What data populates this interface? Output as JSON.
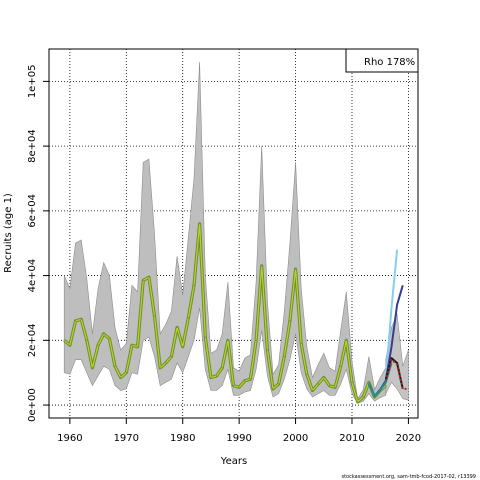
{
  "chart_data": {
    "type": "line",
    "xlabel": "Years",
    "ylabel": "Recruits (age 1)",
    "xlim": [
      1956.3,
      2021.7
    ],
    "ylim": [
      -4000,
      110000
    ],
    "x_ticks": [
      1960,
      1970,
      1980,
      1990,
      2000,
      2010,
      2020
    ],
    "y_ticks": [
      0,
      20000,
      40000,
      60000,
      80000,
      100000
    ],
    "y_tick_labels": [
      "0e+00",
      "2e+04",
      "4e+04",
      "6e+04",
      "8e+04",
      "1e+05"
    ],
    "grid": true,
    "legend": {
      "position": "top-right",
      "text": "Rho 178%"
    },
    "footer": "stockassessment.org, sam-tmb-fcod-2017-02, r13399",
    "colors": {
      "band": "#bebebe",
      "band_edge": "#8c8c8c",
      "main": "#6f8f2a",
      "highlight": "#b7d42a",
      "peel_1": "#87ceeb",
      "peel_2": "#3a3a9a",
      "peel_3": "#2e2e6e",
      "peel_4": "#2a8a8a",
      "peel_5": "#1a1a1a",
      "peel_6": "#a52a2a"
    },
    "x": [
      1959,
      1960,
      1961,
      1962,
      1963,
      1964,
      1965,
      1966,
      1967,
      1968,
      1969,
      1970,
      1971,
      1972,
      1973,
      1974,
      1975,
      1976,
      1977,
      1978,
      1979,
      1980,
      1981,
      1982,
      1983,
      1984,
      1985,
      1986,
      1987,
      1988,
      1989,
      1990,
      1991,
      1992,
      1993,
      1994,
      1995,
      1996,
      1997,
      1998,
      1999,
      2000,
      2001,
      2002,
      2003,
      2004,
      2005,
      2006,
      2007,
      2008,
      2009,
      2010,
      2011,
      2012,
      2013,
      2014,
      2015,
      2016
    ],
    "series": [
      {
        "values": [
          20000,
          18500,
          26000,
          26500,
          20000,
          11500,
          18500,
          22000,
          20500,
          12000,
          8500,
          10000,
          18500,
          18000,
          38500,
          39500,
          27500,
          11500,
          13000,
          15000,
          24000,
          18000,
          27000,
          37000,
          56000,
          21000,
          8500,
          9000,
          11500,
          20000,
          6000,
          5500,
          7500,
          8000,
          20000,
          43000,
          17000,
          5000,
          6500,
          15000,
          26000,
          42000,
          19000,
          9500,
          4500,
          6500,
          8500,
          6000,
          5500,
          12000,
          20000,
          7000,
          1000,
          2500,
          7000,
          2500,
          4500,
          6000
        ],
        "lower": [
          10000,
          9500,
          14000,
          14000,
          10000,
          6000,
          9000,
          12000,
          11000,
          6000,
          4500,
          5000,
          10000,
          9500,
          20000,
          21000,
          15000,
          6000,
          7000,
          8000,
          13000,
          10000,
          15000,
          20000,
          30000,
          11000,
          4500,
          4500,
          6000,
          11000,
          3000,
          3000,
          4000,
          4500,
          11000,
          23000,
          9000,
          2500,
          3500,
          8000,
          14000,
          22000,
          10000,
          5000,
          2500,
          3500,
          4500,
          3000,
          3000,
          6500,
          11000,
          3500,
          500,
          1200,
          3500,
          1200,
          2300,
          3000
        ],
        "upper": [
          40000,
          36000,
          50000,
          51000,
          39000,
          22000,
          36000,
          44000,
          40000,
          24000,
          17000,
          19000,
          37000,
          35000,
          75000,
          76000,
          53000,
          22000,
          25000,
          29000,
          46000,
          34000,
          52000,
          70000,
          106000,
          40000,
          16000,
          17000,
          22000,
          38000,
          11500,
          10500,
          14500,
          15500,
          38000,
          80000,
          32000,
          9500,
          12500,
          29000,
          50000,
          75000,
          36000,
          18000,
          8500,
          12500,
          16000,
          11500,
          10500,
          23000,
          35000,
          13500,
          1900,
          4800,
          15000,
          4800,
          8500,
          11500
        ]
      }
    ],
    "peels": [
      {
        "color_key": "peel_1",
        "x": [
          2013,
          2014,
          2015,
          2016,
          2017,
          2018
        ],
        "values": [
          6500,
          3000,
          5000,
          8000,
          30000,
          48000
        ]
      },
      {
        "color_key": "peel_2",
        "x": [
          2013,
          2014,
          2015,
          2016,
          2017,
          2018,
          2019
        ],
        "values": [
          6500,
          2800,
          4800,
          7500,
          18000,
          31000,
          37000
        ]
      },
      {
        "color_key": "peel_4",
        "x": [
          2013,
          2014,
          2015,
          2016,
          2017
        ],
        "values": [
          6800,
          2700,
          4600,
          7000,
          13000
        ]
      },
      {
        "color_key": "peel_5",
        "x": [
          2016,
          2017,
          2018,
          2019
        ],
        "values": [
          8000,
          14500,
          13000,
          5000
        ]
      },
      {
        "color_key": "peel_6",
        "x": [
          2016,
          2017,
          2018,
          2019,
          2020
        ],
        "values": [
          7500,
          14000,
          12500,
          5000,
          5000
        ]
      }
    ],
    "peel_bands": [
      {
        "x": [
          2016,
          2017,
          2018,
          2019,
          2020
        ],
        "lower": [
          3500,
          7000,
          5000,
          2000,
          1500
        ],
        "upper": [
          14000,
          24000,
          28000,
          12000,
          17000
        ]
      }
    ]
  }
}
